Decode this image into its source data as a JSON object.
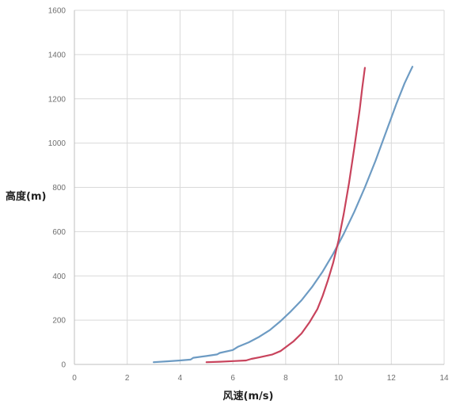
{
  "chart_data": {
    "type": "line",
    "title": "",
    "xlabel": "风速(m/s)",
    "ylabel": "高度(m)",
    "xlim": [
      0,
      14
    ],
    "ylim": [
      0,
      1600
    ],
    "xticks": [
      0,
      2,
      4,
      6,
      8,
      10,
      12,
      14
    ],
    "yticks": [
      0,
      200,
      400,
      600,
      800,
      1000,
      1200,
      1400,
      1600
    ],
    "grid": true,
    "legend": "none",
    "series": [
      {
        "color": "#6d9bc3",
        "x": [
          3.0,
          3.5,
          4.0,
          4.4,
          4.5,
          5.0,
          5.4,
          5.5,
          6.0,
          6.2,
          6.6,
          7.0,
          7.4,
          7.8,
          8.2,
          8.6,
          9.0,
          9.4,
          9.8,
          10.2,
          10.6,
          11.0,
          11.4,
          11.8,
          12.2,
          12.5,
          12.7,
          12.8
        ],
        "y": [
          10,
          14,
          18,
          22,
          30,
          38,
          45,
          52,
          65,
          80,
          100,
          125,
          155,
          195,
          240,
          290,
          350,
          420,
          500,
          590,
          690,
          800,
          920,
          1050,
          1180,
          1270,
          1320,
          1345
        ]
      },
      {
        "color": "#c8435c",
        "x": [
          5.0,
          5.5,
          6.0,
          6.5,
          6.7,
          7.0,
          7.5,
          7.8,
          8.0,
          8.3,
          8.6,
          8.9,
          9.2,
          9.4,
          9.6,
          9.8,
          10.0,
          10.2,
          10.4,
          10.6,
          10.8,
          10.9,
          11.0
        ],
        "y": [
          10,
          12,
          15,
          18,
          25,
          32,
          45,
          60,
          78,
          105,
          140,
          190,
          250,
          310,
          380,
          460,
          560,
          680,
          820,
          980,
          1150,
          1250,
          1340
        ]
      }
    ]
  }
}
